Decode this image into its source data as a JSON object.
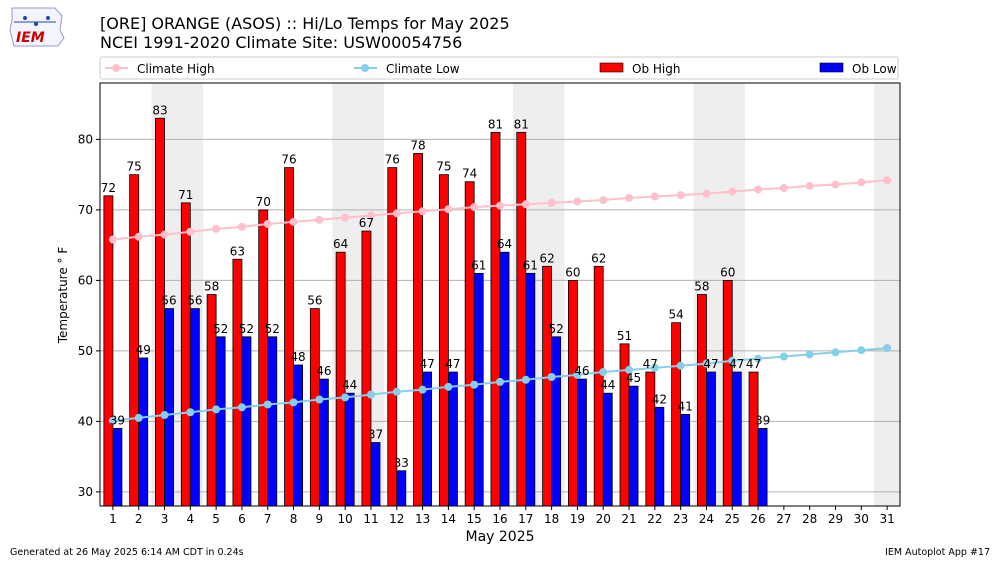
{
  "header": {
    "title_line1": "[ORE] ORANGE (ASOS) :: Hi/Lo Temps for May 2025",
    "title_line2": "NCEI 1991-2020 Climate Site: USW00054756",
    "logo_text": "IEM"
  },
  "footer": {
    "generated": "Generated at 26 May 2025 6:14 AM CDT in 0.24s",
    "app": "IEM Autoplot App #17"
  },
  "colors": {
    "ob_high": "#ff0000",
    "ob_low": "#0000ff",
    "climate_high": "#ffc0cb",
    "climate_low": "#87ceeb",
    "weekend_band": "#eeeeee"
  },
  "chart_data": {
    "type": "bar",
    "xlabel": "May 2025",
    "ylabel": "Temperature ° F",
    "ylim": [
      28,
      88
    ],
    "yticks": [
      30,
      40,
      50,
      60,
      70,
      80
    ],
    "grid": true,
    "legend_placement": "top",
    "days": [
      1,
      2,
      3,
      4,
      5,
      6,
      7,
      8,
      9,
      10,
      11,
      12,
      13,
      14,
      15,
      16,
      17,
      18,
      19,
      20,
      21,
      22,
      23,
      24,
      25,
      26,
      27,
      28,
      29,
      30,
      31
    ],
    "weekend_bands": [
      [
        3,
        4
      ],
      [
        10,
        11
      ],
      [
        17,
        18
      ],
      [
        24,
        25
      ],
      [
        31,
        31
      ]
    ],
    "series": [
      {
        "name": "Climate High",
        "kind": "line",
        "values": [
          65.8,
          66.2,
          66.5,
          66.9,
          67.3,
          67.6,
          68.0,
          68.3,
          68.6,
          68.9,
          69.2,
          69.5,
          69.8,
          70.1,
          70.4,
          70.6,
          70.8,
          71.0,
          71.2,
          71.4,
          71.7,
          71.9,
          72.1,
          72.3,
          72.6,
          72.9,
          73.1,
          73.4,
          73.6,
          73.9,
          74.2
        ]
      },
      {
        "name": "Climate Low",
        "kind": "line",
        "values": [
          40.1,
          40.5,
          40.9,
          41.3,
          41.7,
          42.0,
          42.4,
          42.7,
          43.1,
          43.4,
          43.8,
          44.2,
          44.5,
          44.9,
          45.2,
          45.6,
          45.9,
          46.3,
          46.6,
          47.0,
          47.3,
          47.6,
          47.9,
          48.2,
          48.6,
          48.9,
          49.2,
          49.5,
          49.8,
          50.1,
          50.4
        ]
      },
      {
        "name": "Ob High",
        "kind": "bar",
        "values": [
          72,
          75,
          83,
          71,
          58,
          63,
          70,
          76,
          56,
          64,
          67,
          76,
          78,
          75,
          74,
          81,
          81,
          62,
          60,
          62,
          51,
          47,
          54,
          58,
          60,
          47,
          null,
          null,
          null,
          null,
          null
        ]
      },
      {
        "name": "Ob Low",
        "kind": "bar",
        "values": [
          39,
          49,
          56,
          56,
          52,
          52,
          52,
          48,
          46,
          44,
          37,
          33,
          47,
          47,
          61,
          64,
          61,
          52,
          46,
          44,
          45,
          42,
          41,
          47,
          47,
          39,
          null,
          null,
          null,
          null,
          null
        ]
      }
    ]
  }
}
